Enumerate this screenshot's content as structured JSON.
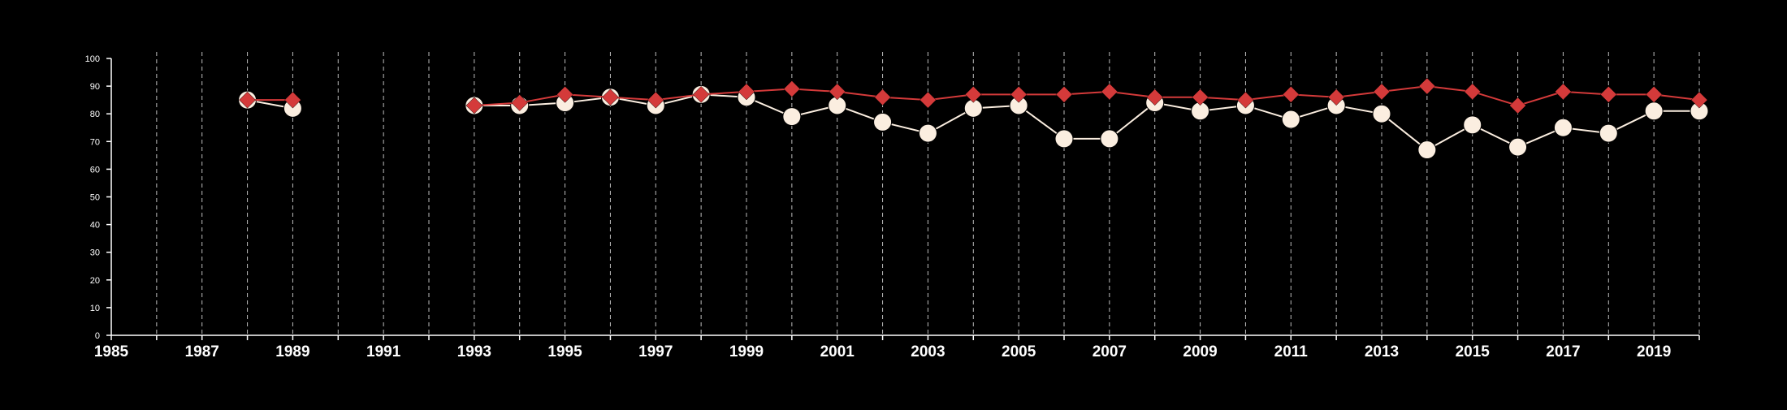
{
  "chart_data": {
    "type": "line",
    "title": "",
    "xlabel": "",
    "ylabel": "",
    "xlim": [
      1985,
      2020
    ],
    "ylim": [
      0,
      100
    ],
    "y_ticks": [
      0,
      10,
      20,
      30,
      40,
      50,
      60,
      70,
      80,
      90,
      100
    ],
    "y_tick_labels": [
      "0",
      "10",
      "20",
      "30",
      "40",
      "50",
      "60",
      "70",
      "80",
      "90",
      "100"
    ],
    "x_ticks": [
      1985,
      1987,
      1989,
      1991,
      1993,
      1995,
      1997,
      1999,
      2001,
      2003,
      2005,
      2007,
      2009,
      2011,
      2013,
      2015,
      2017,
      2019
    ],
    "x_tick_labels": [
      "1985",
      "1987",
      "1989",
      "1991",
      "1993",
      "1995",
      "1997",
      "1999",
      "2001",
      "2003",
      "2005",
      "2007",
      "2009",
      "2011",
      "2013",
      "2015",
      "2017",
      "2019"
    ],
    "vertical_grid": "dashed, every year",
    "legend": "none",
    "series": [
      {
        "marker": "diamond",
        "color": "#d43a3a",
        "points": [
          {
            "x": 1988,
            "y": 85
          },
          {
            "x": 1989,
            "y": 85
          },
          {
            "x": 1993,
            "y": 83
          },
          {
            "x": 1994,
            "y": 84
          },
          {
            "x": 1995,
            "y": 87
          },
          {
            "x": 1996,
            "y": 86
          },
          {
            "x": 1997,
            "y": 85
          },
          {
            "x": 1998,
            "y": 87
          },
          {
            "x": 1999,
            "y": 88
          },
          {
            "x": 2000,
            "y": 89
          },
          {
            "x": 2001,
            "y": 88
          },
          {
            "x": 2002,
            "y": 86
          },
          {
            "x": 2003,
            "y": 85
          },
          {
            "x": 2004,
            "y": 87
          },
          {
            "x": 2005,
            "y": 87
          },
          {
            "x": 2006,
            "y": 87
          },
          {
            "x": 2007,
            "y": 88
          },
          {
            "x": 2008,
            "y": 86
          },
          {
            "x": 2009,
            "y": 86
          },
          {
            "x": 2010,
            "y": 85
          },
          {
            "x": 2011,
            "y": 87
          },
          {
            "x": 2012,
            "y": 86
          },
          {
            "x": 2013,
            "y": 88
          },
          {
            "x": 2014,
            "y": 90
          },
          {
            "x": 2015,
            "y": 88
          },
          {
            "x": 2016,
            "y": 83
          },
          {
            "x": 2017,
            "y": 88
          },
          {
            "x": 2018,
            "y": 87
          },
          {
            "x": 2019,
            "y": 87
          },
          {
            "x": 2020,
            "y": 85
          }
        ]
      },
      {
        "marker": "circle",
        "color": "#fbeee0",
        "points": [
          {
            "x": 1988,
            "y": 85
          },
          {
            "x": 1989,
            "y": 82
          },
          {
            "x": 1993,
            "y": 83
          },
          {
            "x": 1994,
            "y": 83
          },
          {
            "x": 1995,
            "y": 84
          },
          {
            "x": 1996,
            "y": 86
          },
          {
            "x": 1997,
            "y": 83
          },
          {
            "x": 1998,
            "y": 87
          },
          {
            "x": 1999,
            "y": 86
          },
          {
            "x": 2000,
            "y": 79
          },
          {
            "x": 2001,
            "y": 83
          },
          {
            "x": 2002,
            "y": 77
          },
          {
            "x": 2003,
            "y": 73
          },
          {
            "x": 2004,
            "y": 82
          },
          {
            "x": 2005,
            "y": 83
          },
          {
            "x": 2006,
            "y": 71
          },
          {
            "x": 2007,
            "y": 71
          },
          {
            "x": 2008,
            "y": 84
          },
          {
            "x": 2009,
            "y": 81
          },
          {
            "x": 2010,
            "y": 83
          },
          {
            "x": 2011,
            "y": 78
          },
          {
            "x": 2012,
            "y": 83
          },
          {
            "x": 2013,
            "y": 80
          },
          {
            "x": 2014,
            "y": 67
          },
          {
            "x": 2015,
            "y": 76
          },
          {
            "x": 2016,
            "y": 68
          },
          {
            "x": 2017,
            "y": 75
          },
          {
            "x": 2018,
            "y": 73
          },
          {
            "x": 2019,
            "y": 81
          },
          {
            "x": 2020,
            "y": 81
          }
        ]
      }
    ]
  }
}
